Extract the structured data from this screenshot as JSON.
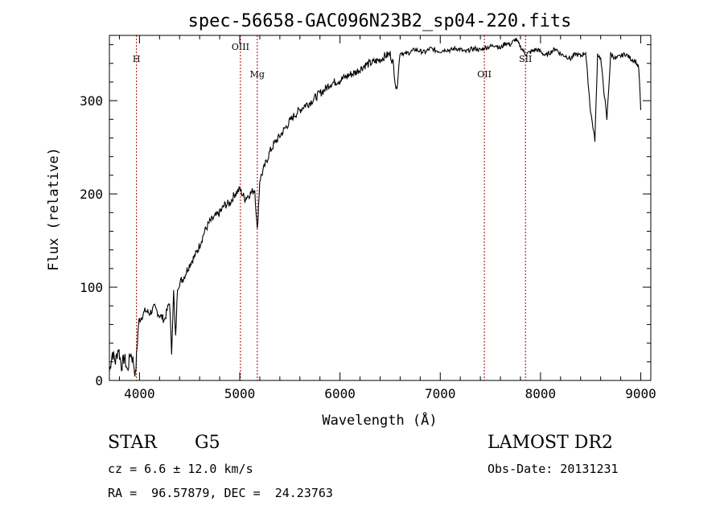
{
  "chart_data": {
    "type": "line",
    "title": "spec-56658-GAC096N23B2_sp04-220.fits",
    "xlabel": "Wavelength (Å)",
    "ylabel": "Flux (relative)",
    "xlim": [
      3700,
      9100
    ],
    "ylim": [
      0,
      370
    ],
    "x_ticks": [
      4000,
      5000,
      6000,
      7000,
      8000,
      9000
    ],
    "y_ticks": [
      0,
      100,
      200,
      300
    ],
    "series": [
      {
        "name": "flux",
        "x": [
          3700,
          3730,
          3760,
          3790,
          3820,
          3850,
          3880,
          3910,
          3940,
          3960,
          3975,
          3990,
          4000,
          4030,
          4060,
          4100,
          4150,
          4200,
          4250,
          4300,
          4320,
          4340,
          4360,
          4380,
          4400,
          4440,
          4480,
          4520,
          4560,
          4600,
          4650,
          4700,
          4750,
          4800,
          4850,
          4900,
          4950,
          5000,
          5050,
          5100,
          5150,
          5175,
          5200,
          5250,
          5300,
          5350,
          5400,
          5450,
          5500,
          5550,
          5600,
          5650,
          5700,
          5750,
          5800,
          5850,
          5900,
          5950,
          6000,
          6050,
          6100,
          6150,
          6200,
          6250,
          6300,
          6350,
          6400,
          6450,
          6500,
          6530,
          6563,
          6600,
          6650,
          6700,
          6750,
          6800,
          6850,
          6900,
          6950,
          7000,
          7050,
          7100,
          7150,
          7200,
          7250,
          7300,
          7350,
          7400,
          7450,
          7500,
          7550,
          7600,
          7650,
          7700,
          7750,
          7800,
          7850,
          7900,
          7950,
          8000,
          8050,
          8100,
          8150,
          8200,
          8250,
          8300,
          8350,
          8400,
          8450,
          8498,
          8542,
          8570,
          8600,
          8662,
          8700,
          8750,
          8800,
          8850,
          8900,
          8950,
          8980,
          9000
        ],
        "values": [
          10,
          30,
          20,
          35,
          15,
          25,
          10,
          30,
          20,
          5,
          35,
          60,
          65,
          70,
          75,
          72,
          78,
          70,
          65,
          85,
          30,
          95,
          45,
          100,
          105,
          110,
          120,
          128,
          135,
          145,
          160,
          170,
          175,
          180,
          188,
          190,
          200,
          205,
          195,
          200,
          205,
          160,
          215,
          230,
          245,
          255,
          262,
          270,
          278,
          285,
          290,
          295,
          298,
          303,
          308,
          312,
          318,
          320,
          322,
          325,
          328,
          330,
          334,
          338,
          340,
          342,
          344,
          348,
          350,
          340,
          310,
          352,
          350,
          352,
          355,
          353,
          352,
          356,
          354,
          353,
          355,
          354,
          356,
          355,
          352,
          355,
          356,
          354,
          357,
          358,
          360,
          356,
          362,
          360,
          366,
          358,
          350,
          352,
          355,
          353,
          348,
          352,
          356,
          350,
          348,
          345,
          350,
          348,
          352,
          290,
          258,
          350,
          345,
          280,
          350,
          345,
          348,
          350,
          345,
          342,
          335,
          290
        ],
        "color": "#000000"
      }
    ],
    "emission_lines": [
      {
        "label": "H",
        "x": 3970
      },
      {
        "label": "OIII",
        "x": 5007
      },
      {
        "label": "Mg",
        "x": 5175
      },
      {
        "label": "OII",
        "x": 7440
      },
      {
        "label": "SII",
        "x": 7850
      }
    ],
    "line_color": "#aa0000"
  },
  "info": {
    "object_class": "STAR",
    "subclass": "G5",
    "survey": "LAMOST DR2",
    "redshift": "cz = 6.6 ± 12.0 km/s",
    "obs_date": "Obs-Date: 20131231",
    "coords": "RA =  96.57879, DEC =  24.23763"
  }
}
